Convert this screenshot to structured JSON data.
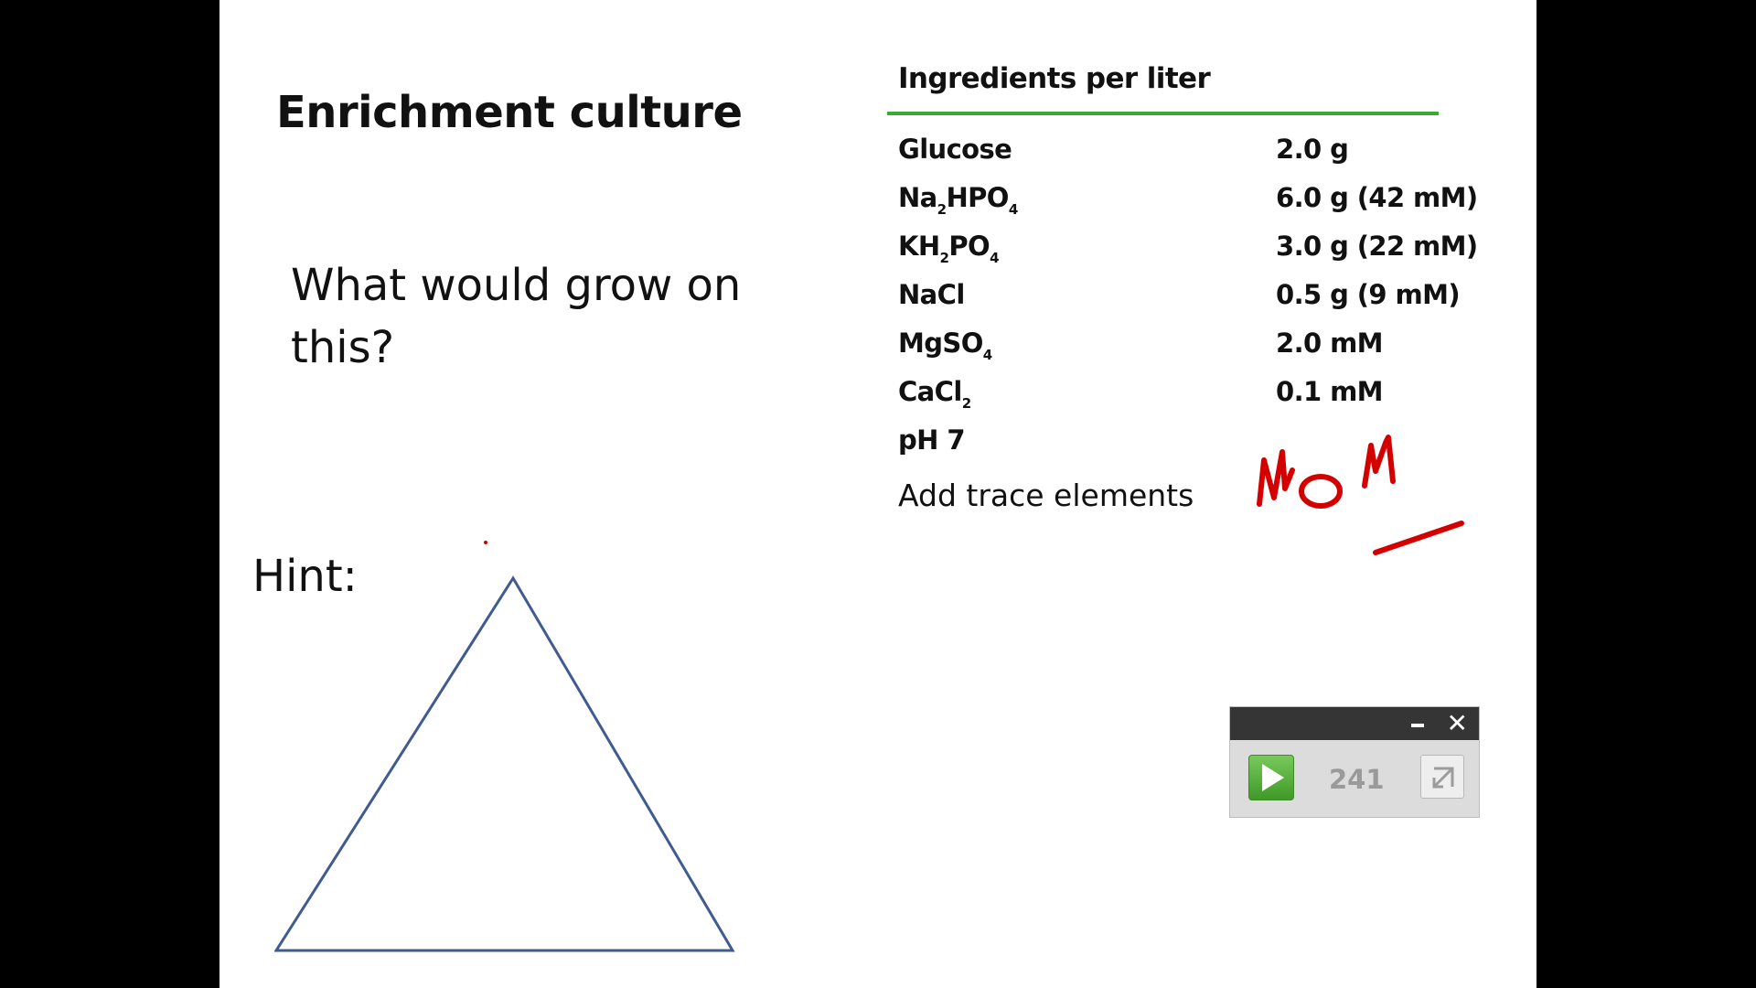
{
  "slide": {
    "title": "Enrichment culture",
    "question": "What would grow on this?",
    "hint": "Hint:"
  },
  "table": {
    "header": "Ingredients per liter",
    "rows": [
      {
        "name": "Glucose",
        "amount": "2.0 g"
      },
      {
        "name_parts": [
          "Na",
          "2",
          "HPO",
          "4"
        ],
        "amount": "6.0 g (42 mM)"
      },
      {
        "name_parts": [
          "KH",
          "2",
          "PO",
          "4"
        ],
        "amount": "3.0 g (22 mM)"
      },
      {
        "name": "NaCl",
        "amount": "0.5 g (9 mM)"
      },
      {
        "name_parts": [
          "MgSO",
          "4"
        ],
        "amount": "2.0 mM"
      },
      {
        "name_parts": [
          "CaCl",
          "2"
        ],
        "amount": "0.1 mM"
      },
      {
        "name": "pH 7",
        "amount": ""
      }
    ],
    "trace": "Add trace elements"
  },
  "annotation": {
    "handwritten_text": "NOM",
    "ink_color": "#d40000"
  },
  "widget": {
    "counter": "241",
    "close_label": "✕",
    "icons": [
      "minimize-icon",
      "close-icon",
      "play-icon",
      "expand-icon"
    ],
    "play_color": "#4caf36"
  },
  "colors": {
    "rule": "#3aaa35",
    "triangle": "#3f5b8f"
  }
}
